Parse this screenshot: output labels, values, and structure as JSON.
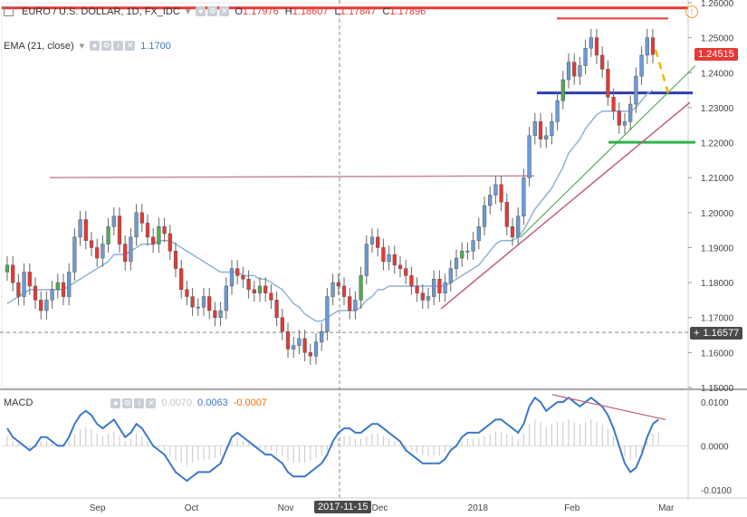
{
  "header": {
    "symbol": "EURO / U.S. DOLLAR, 1D, FX_IDC",
    "ohlc": [
      {
        "label": "O",
        "value": "1.17976"
      },
      {
        "label": "H",
        "value": "1.18607"
      },
      {
        "label": "L",
        "value": "1.17847"
      },
      {
        "label": "C",
        "value": "1.17896"
      }
    ]
  },
  "ema": {
    "label": "EMA (21, close)",
    "value": "1.1700"
  },
  "macd": {
    "label": "MACD",
    "v1": "0.0070",
    "v2": "0.0063",
    "v3": "-0.0007"
  },
  "price_tags": {
    "last": "1.24515",
    "crosshair": "1.16577"
  },
  "crosshair_date": "2017-11-15",
  "colors": {
    "up": "#4caf50",
    "down": "#e53935",
    "candle_blue": "#6a9bd8",
    "ema": "#8fb3d9",
    "macd_line": "#3a78c9",
    "resistance_red": "#e53935",
    "support_blue": "#2b3db3",
    "support_green": "#2fb34a",
    "trend_pink": "#c0607a",
    "trend_green": "#3aa33a",
    "dashed_yellow": "#f5b400",
    "hline_mauve": "#c58a9a"
  },
  "chart_data": [
    {
      "type": "candlestick",
      "title": "EURO / U.S. DOLLAR, 1D, FX_IDC",
      "x_tick_labels": [
        "Sep",
        "Oct",
        "Nov",
        "Dec",
        "2018",
        "Feb",
        "Mar"
      ],
      "y_tick_labels": [
        "1.26000",
        "1.25000",
        "1.24000",
        "1.23000",
        "1.22000",
        "1.21000",
        "1.20000",
        "1.19000",
        "1.18000",
        "1.17000",
        "1.16000",
        "1.15000"
      ],
      "ylim": [
        1.15,
        1.26
      ],
      "last_price": 1.24515,
      "crosshair_price": 1.16577,
      "close_path": [
        1.185,
        1.18,
        1.176,
        1.183,
        1.179,
        1.175,
        1.172,
        1.175,
        1.178,
        1.18,
        1.176,
        1.183,
        1.193,
        1.198,
        1.192,
        1.19,
        1.187,
        1.191,
        1.196,
        1.199,
        1.191,
        1.186,
        1.193,
        1.2,
        1.197,
        1.193,
        1.191,
        1.196,
        1.194,
        1.189,
        1.184,
        1.178,
        1.176,
        1.173,
        1.173,
        1.176,
        1.172,
        1.17,
        1.172,
        1.179,
        1.184,
        1.182,
        1.181,
        1.178,
        1.177,
        1.179,
        1.177,
        1.175,
        1.17,
        1.166,
        1.161,
        1.162,
        1.164,
        1.16,
        1.159,
        1.163,
        1.166,
        1.176,
        1.18,
        1.179,
        1.176,
        1.172,
        1.175,
        1.182,
        1.191,
        1.193,
        1.19,
        1.186,
        1.188,
        1.185,
        1.184,
        1.182,
        1.179,
        1.177,
        1.175,
        1.176,
        1.181,
        1.177,
        1.18,
        1.184,
        1.187,
        1.189,
        1.189,
        1.192,
        1.196,
        1.202,
        1.205,
        1.208,
        1.203,
        1.196,
        1.193,
        1.199,
        1.21,
        1.222,
        1.226,
        1.221,
        1.222,
        1.226,
        1.232,
        1.238,
        1.243,
        1.239,
        1.242,
        1.247,
        1.25,
        1.245,
        1.241,
        1.233,
        1.229,
        1.225,
        1.226,
        1.231,
        1.239,
        1.245,
        1.25,
        1.2452
      ],
      "ema_path": [
        1.174,
        1.175,
        1.176,
        1.177,
        1.178,
        1.178,
        1.178,
        1.178,
        1.178,
        1.178,
        1.178,
        1.179,
        1.18,
        1.181,
        1.182,
        1.183,
        1.184,
        1.185,
        1.186,
        1.188,
        1.188,
        1.188,
        1.189,
        1.19,
        1.191,
        1.191,
        1.191,
        1.192,
        1.192,
        1.192,
        1.191,
        1.19,
        1.189,
        1.188,
        1.187,
        1.186,
        1.185,
        1.184,
        1.183,
        1.183,
        1.183,
        1.183,
        1.182,
        1.182,
        1.182,
        1.181,
        1.181,
        1.18,
        1.179,
        1.178,
        1.176,
        1.174,
        1.173,
        1.171,
        1.17,
        1.169,
        1.169,
        1.17,
        1.171,
        1.172,
        1.172,
        1.172,
        1.172,
        1.173,
        1.175,
        1.176,
        1.178,
        1.178,
        1.179,
        1.179,
        1.179,
        1.179,
        1.179,
        1.179,
        1.179,
        1.179,
        1.179,
        1.179,
        1.179,
        1.18,
        1.181,
        1.182,
        1.183,
        1.184,
        1.185,
        1.187,
        1.189,
        1.191,
        1.192,
        1.192,
        1.192,
        1.193,
        1.195,
        1.198,
        1.201,
        1.203,
        1.205,
        1.207,
        1.21,
        1.213,
        1.217,
        1.219,
        1.221,
        1.224,
        1.226,
        1.228,
        1.229,
        1.229,
        1.229,
        1.229,
        1.229,
        1.229,
        1.23,
        1.232,
        1.234,
        1.235
      ]
    },
    {
      "type": "line",
      "title": "MACD",
      "y_tick_labels": [
        "0.0100",
        "0.0000",
        "-0.0100"
      ],
      "ylim": [
        -0.0115,
        0.0125
      ],
      "macd_path": [
        0.004,
        0.002,
        0.001,
        0.0,
        -0.001,
        0.0,
        0.002,
        0.002,
        0.001,
        0.0,
        0.0,
        0.002,
        0.005,
        0.007,
        0.008,
        0.007,
        0.005,
        0.004,
        0.005,
        0.006,
        0.004,
        0.002,
        0.003,
        0.005,
        0.004,
        0.002,
        0.0,
        -0.001,
        -0.002,
        -0.004,
        -0.006,
        -0.007,
        -0.008,
        -0.007,
        -0.006,
        -0.006,
        -0.006,
        -0.005,
        -0.004,
        -0.001,
        0.002,
        0.003,
        0.002,
        0.001,
        0.0,
        -0.001,
        -0.002,
        -0.002,
        -0.003,
        -0.004,
        -0.006,
        -0.007,
        -0.007,
        -0.007,
        -0.006,
        -0.005,
        -0.004,
        -0.002,
        0.001,
        0.003,
        0.004,
        0.004,
        0.003,
        0.003,
        0.004,
        0.005,
        0.005,
        0.004,
        0.003,
        0.002,
        0.001,
        -0.001,
        -0.002,
        -0.003,
        -0.004,
        -0.004,
        -0.004,
        -0.004,
        -0.003,
        -0.001,
        0.0,
        0.002,
        0.003,
        0.003,
        0.003,
        0.004,
        0.005,
        0.006,
        0.006,
        0.005,
        0.004,
        0.003,
        0.005,
        0.009,
        0.011,
        0.01,
        0.008,
        0.009,
        0.01,
        0.01,
        0.011,
        0.01,
        0.009,
        0.01,
        0.011,
        0.01,
        0.009,
        0.007,
        0.004,
        0.0,
        -0.004,
        -0.006,
        -0.005,
        -0.002,
        0.002,
        0.005,
        0.006
      ]
    }
  ]
}
